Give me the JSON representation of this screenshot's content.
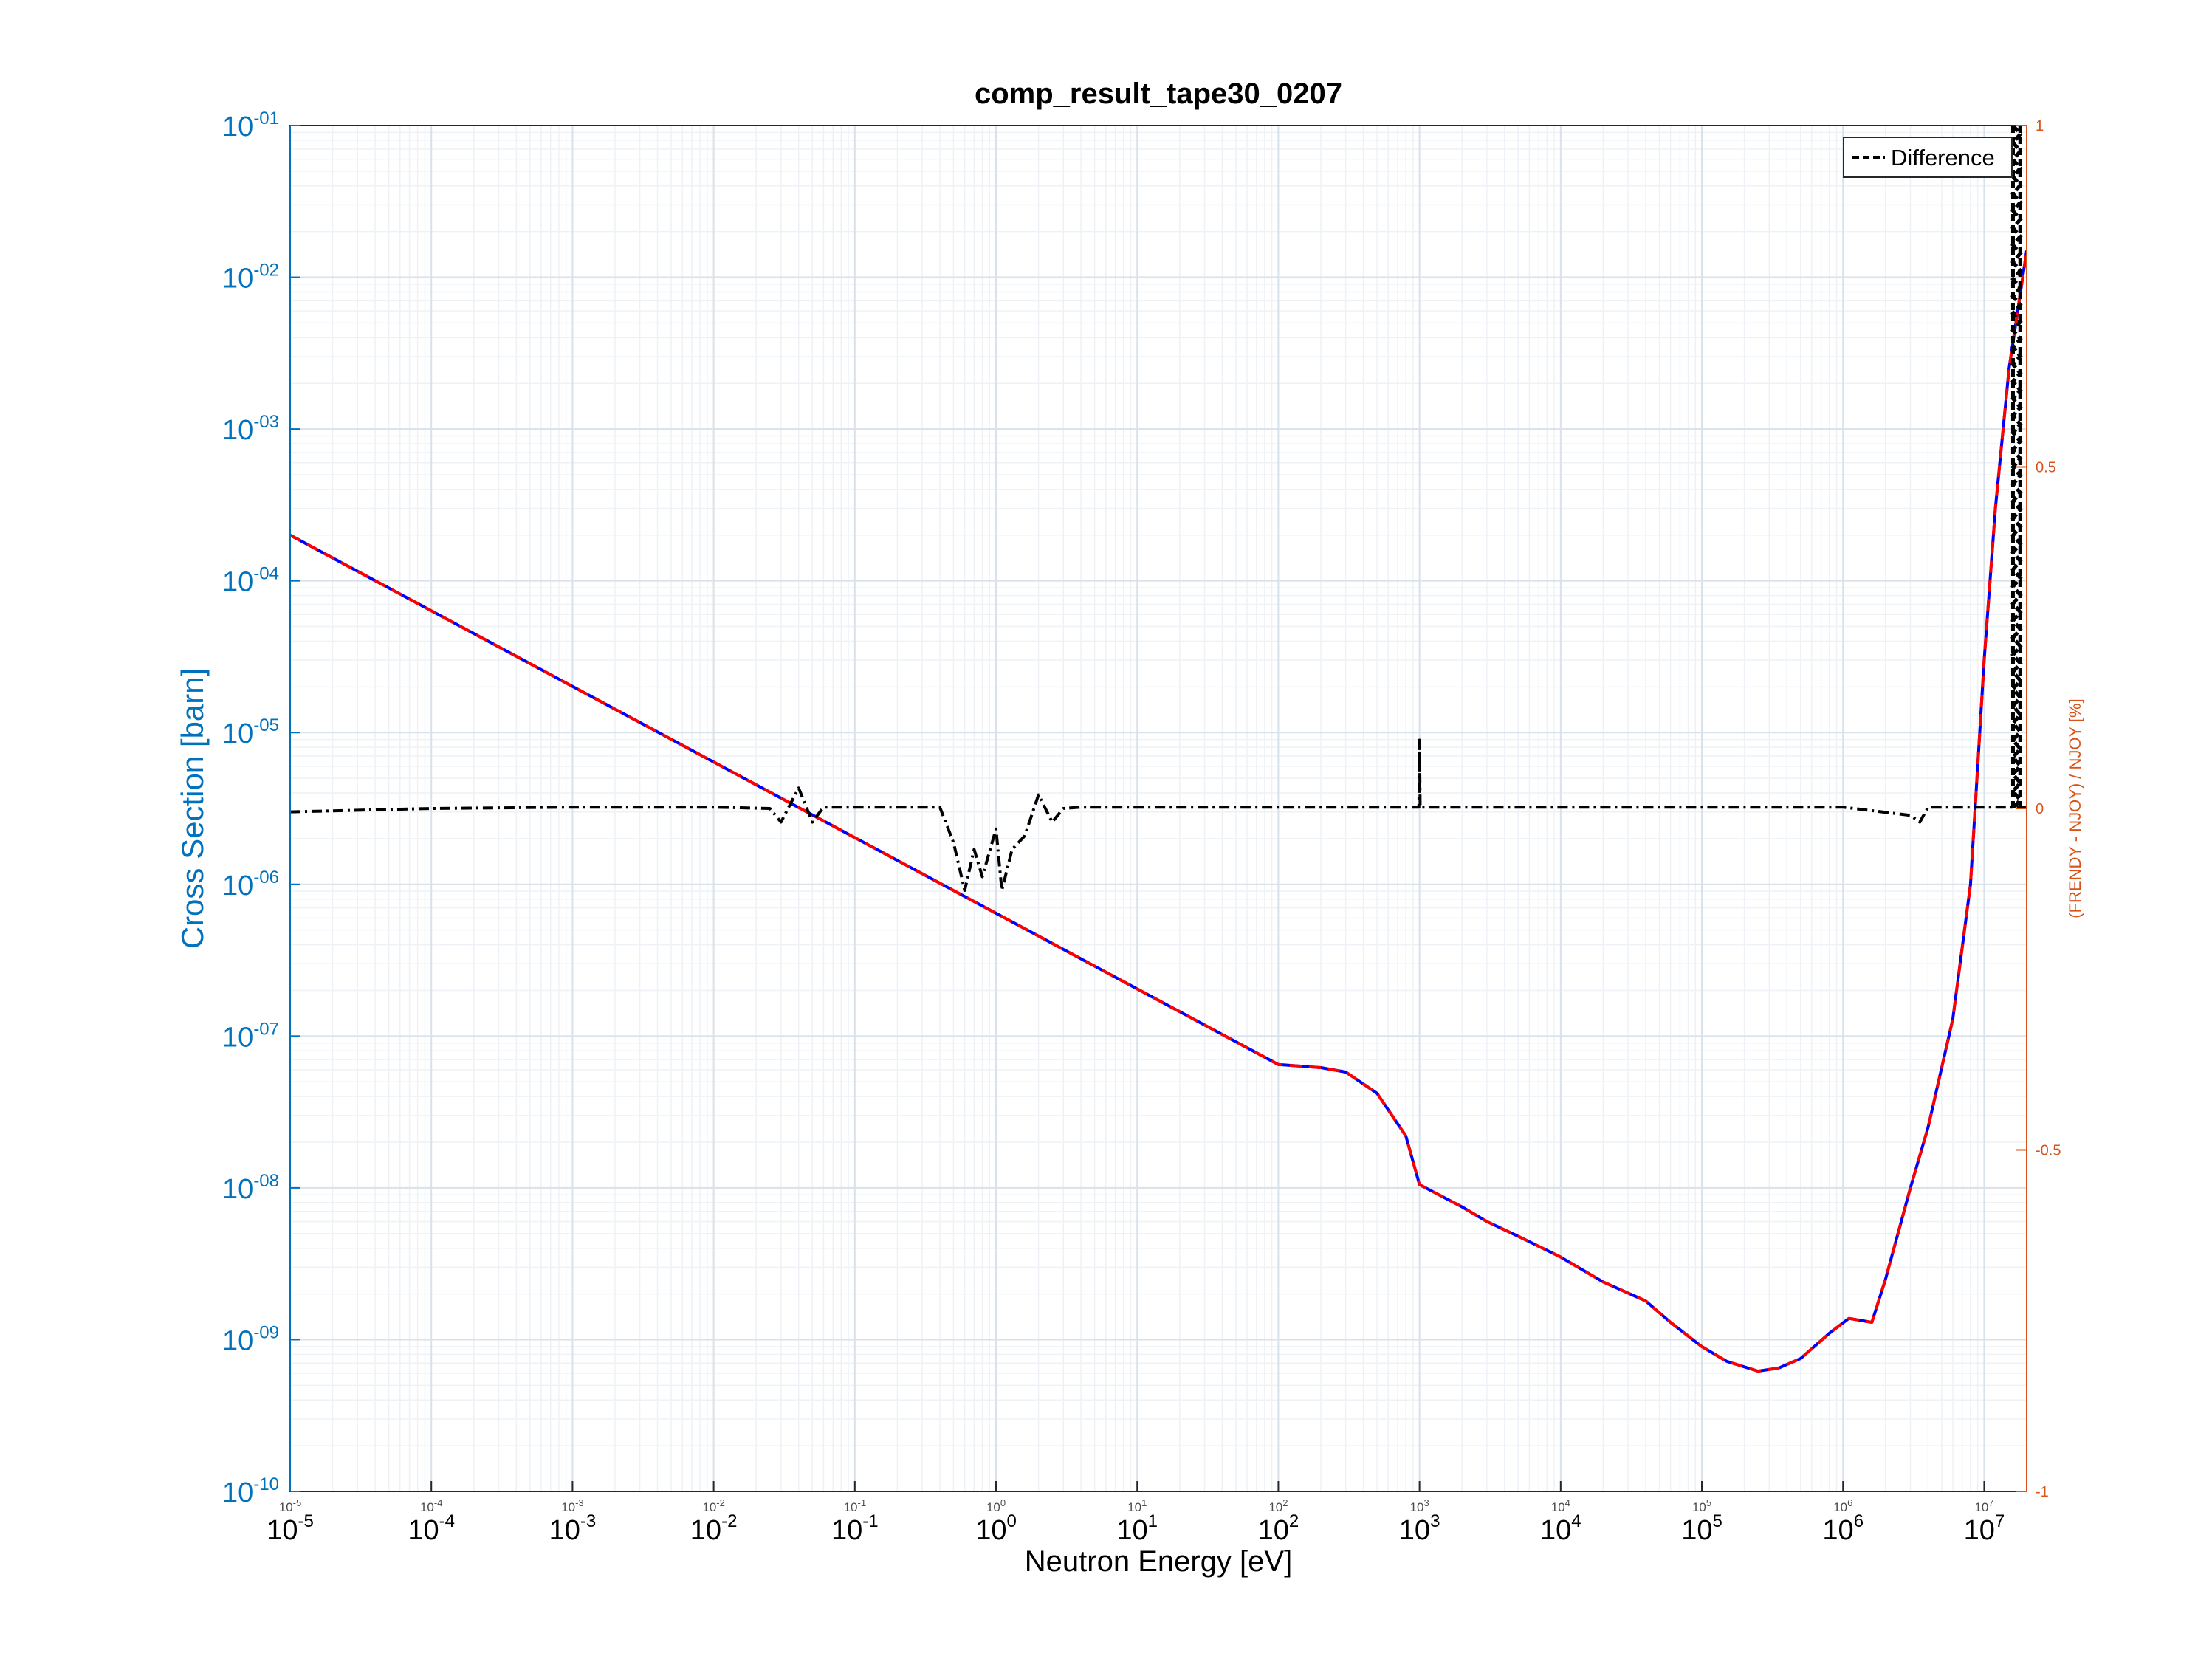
{
  "chart_data": {
    "type": "line",
    "title": "comp_result_tape30_0207",
    "xlabel": "Neutron Energy [eV]",
    "ylabel": "Cross Section [barn]",
    "ylabel_right": "(FRENDY - NJOY) / NJOY [%]",
    "x_scale": "log",
    "y_scale": "log",
    "xlim": [
      1e-05,
      20000000.0
    ],
    "ylim": [
      1e-10,
      0.1
    ],
    "ylim_right": [
      -1,
      1
    ],
    "grid": true,
    "x_ticks": [
      {
        "base": "10",
        "exp": "-5"
      },
      {
        "base": "10",
        "exp": "-4"
      },
      {
        "base": "10",
        "exp": "-3"
      },
      {
        "base": "10",
        "exp": "-2"
      },
      {
        "base": "10",
        "exp": "-1"
      },
      {
        "base": "10",
        "exp": "0"
      },
      {
        "base": "10",
        "exp": "1"
      },
      {
        "base": "10",
        "exp": "2"
      },
      {
        "base": "10",
        "exp": "3"
      },
      {
        "base": "10",
        "exp": "4"
      },
      {
        "base": "10",
        "exp": "5"
      },
      {
        "base": "10",
        "exp": "6"
      },
      {
        "base": "10",
        "exp": "7"
      }
    ],
    "y_ticks": [
      {
        "base": "10",
        "exp": "-01"
      },
      {
        "base": "10",
        "exp": "-02"
      },
      {
        "base": "10",
        "exp": "-03"
      },
      {
        "base": "10",
        "exp": "-04"
      },
      {
        "base": "10",
        "exp": "-05"
      },
      {
        "base": "10",
        "exp": "-06"
      },
      {
        "base": "10",
        "exp": "-07"
      },
      {
        "base": "10",
        "exp": "-08"
      },
      {
        "base": "10",
        "exp": "-09"
      },
      {
        "base": "10",
        "exp": "-10"
      }
    ],
    "y_right_ticks": [
      "1",
      "0.5",
      "0",
      "-0.5",
      "-1"
    ],
    "legend": {
      "position": "top-right",
      "entries": [
        "Difference"
      ]
    },
    "series": [
      {
        "name": "NJOY",
        "axis": "left",
        "color": "#0000ff",
        "style": "solid",
        "points": [
          [
            1e-05,
            0.0002
          ],
          [
            100.0,
            6.5e-08
          ],
          [
            200.0,
            6.2e-08
          ],
          [
            300.0,
            5.8e-08
          ],
          [
            500.0,
            4.2e-08
          ],
          [
            800.0,
            2.2e-08
          ],
          [
            1000.0,
            1.05e-08
          ],
          [
            2000.0,
            7.5e-09
          ],
          [
            3000.0,
            6e-09
          ],
          [
            5000.0,
            4.8e-09
          ],
          [
            10000.0,
            3.5e-09
          ],
          [
            20000.0,
            2.4e-09
          ],
          [
            40000.0,
            1.8e-09
          ],
          [
            60000.0,
            1.3e-09
          ],
          [
            100000.0,
            9e-10
          ],
          [
            150000.0,
            7.2e-10
          ],
          [
            250000.0,
            6.2e-10
          ],
          [
            350000.0,
            6.5e-10
          ],
          [
            500000.0,
            7.5e-10
          ],
          [
            800000.0,
            1.1e-09
          ],
          [
            1100000.0,
            1.38e-09
          ],
          [
            1600000.0,
            1.3e-09
          ],
          [
            2000000.0,
            2.5e-09
          ],
          [
            3000000.0,
            1e-08
          ],
          [
            4000000.0,
            2.5e-08
          ],
          [
            6000000.0,
            1.3e-07
          ],
          [
            8000000.0,
            1e-06
          ],
          [
            10000000.0,
            3e-05
          ],
          [
            12000000.0,
            0.0003
          ],
          [
            15000000.0,
            0.0025
          ],
          [
            20000000.0,
            0.015
          ]
        ]
      },
      {
        "name": "FRENDY",
        "axis": "left",
        "color": "#ff0000",
        "style": "dashed",
        "points": [
          [
            1e-05,
            0.0002
          ],
          [
            100.0,
            6.5e-08
          ],
          [
            200.0,
            6.2e-08
          ],
          [
            300.0,
            5.8e-08
          ],
          [
            500.0,
            4.2e-08
          ],
          [
            800.0,
            2.2e-08
          ],
          [
            1000.0,
            1.05e-08
          ],
          [
            2000.0,
            7.5e-09
          ],
          [
            3000.0,
            6e-09
          ],
          [
            5000.0,
            4.8e-09
          ],
          [
            10000.0,
            3.5e-09
          ],
          [
            20000.0,
            2.4e-09
          ],
          [
            40000.0,
            1.8e-09
          ],
          [
            60000.0,
            1.3e-09
          ],
          [
            100000.0,
            9e-10
          ],
          [
            150000.0,
            7.2e-10
          ],
          [
            250000.0,
            6.2e-10
          ],
          [
            350000.0,
            6.5e-10
          ],
          [
            500000.0,
            7.5e-10
          ],
          [
            800000.0,
            1.1e-09
          ],
          [
            1100000.0,
            1.38e-09
          ],
          [
            1600000.0,
            1.3e-09
          ],
          [
            2000000.0,
            2.5e-09
          ],
          [
            3000000.0,
            1e-08
          ],
          [
            4000000.0,
            2.5e-08
          ],
          [
            6000000.0,
            1.3e-07
          ],
          [
            8000000.0,
            1e-06
          ],
          [
            10000000.0,
            3e-05
          ],
          [
            12000000.0,
            0.0003
          ],
          [
            15000000.0,
            0.0025
          ],
          [
            20000000.0,
            0.015
          ]
        ]
      },
      {
        "name": "Difference",
        "axis": "right",
        "color": "#000000",
        "style": "dashdot",
        "points": [
          [
            1e-05,
            -0.005
          ],
          [
            0.0001,
            0.0
          ],
          [
            0.001,
            0.002
          ],
          [
            0.01,
            0.002
          ],
          [
            0.025,
            0.0
          ],
          [
            0.03,
            -0.02
          ],
          [
            0.04,
            0.03
          ],
          [
            0.05,
            -0.02
          ],
          [
            0.06,
            0.002
          ],
          [
            0.4,
            0.002
          ],
          [
            0.5,
            -0.05
          ],
          [
            0.6,
            -0.12
          ],
          [
            0.7,
            -0.06
          ],
          [
            0.8,
            -0.1
          ],
          [
            1.0,
            -0.03
          ],
          [
            1.1,
            -0.12
          ],
          [
            1.3,
            -0.06
          ],
          [
            1.6,
            -0.04
          ],
          [
            2.0,
            0.02
          ],
          [
            2.5,
            -0.02
          ],
          [
            3.0,
            0.0
          ],
          [
            4.0,
            0.002
          ],
          [
            10,
            0.002
          ],
          [
            100,
            0.002
          ],
          [
            990.0,
            0.002
          ],
          [
            1000.0,
            0.1
          ],
          [
            1010.0,
            0.002
          ],
          [
            10000.0,
            0.002
          ],
          [
            100000.0,
            0.002
          ],
          [
            1000000.0,
            0.002
          ],
          [
            3000000.0,
            -0.01
          ],
          [
            3500000.0,
            -0.02
          ],
          [
            4000000.0,
            0.002
          ],
          [
            10000000.0,
            0.002
          ],
          [
            15000000.0,
            0.002
          ],
          [
            20000000.0,
            0.002
          ]
        ]
      }
    ],
    "annotations": [
      {
        "text": "dense oscillating difference band near 1.6e7 - 1.8e7 eV spanning 0 to 1 %"
      }
    ]
  }
}
